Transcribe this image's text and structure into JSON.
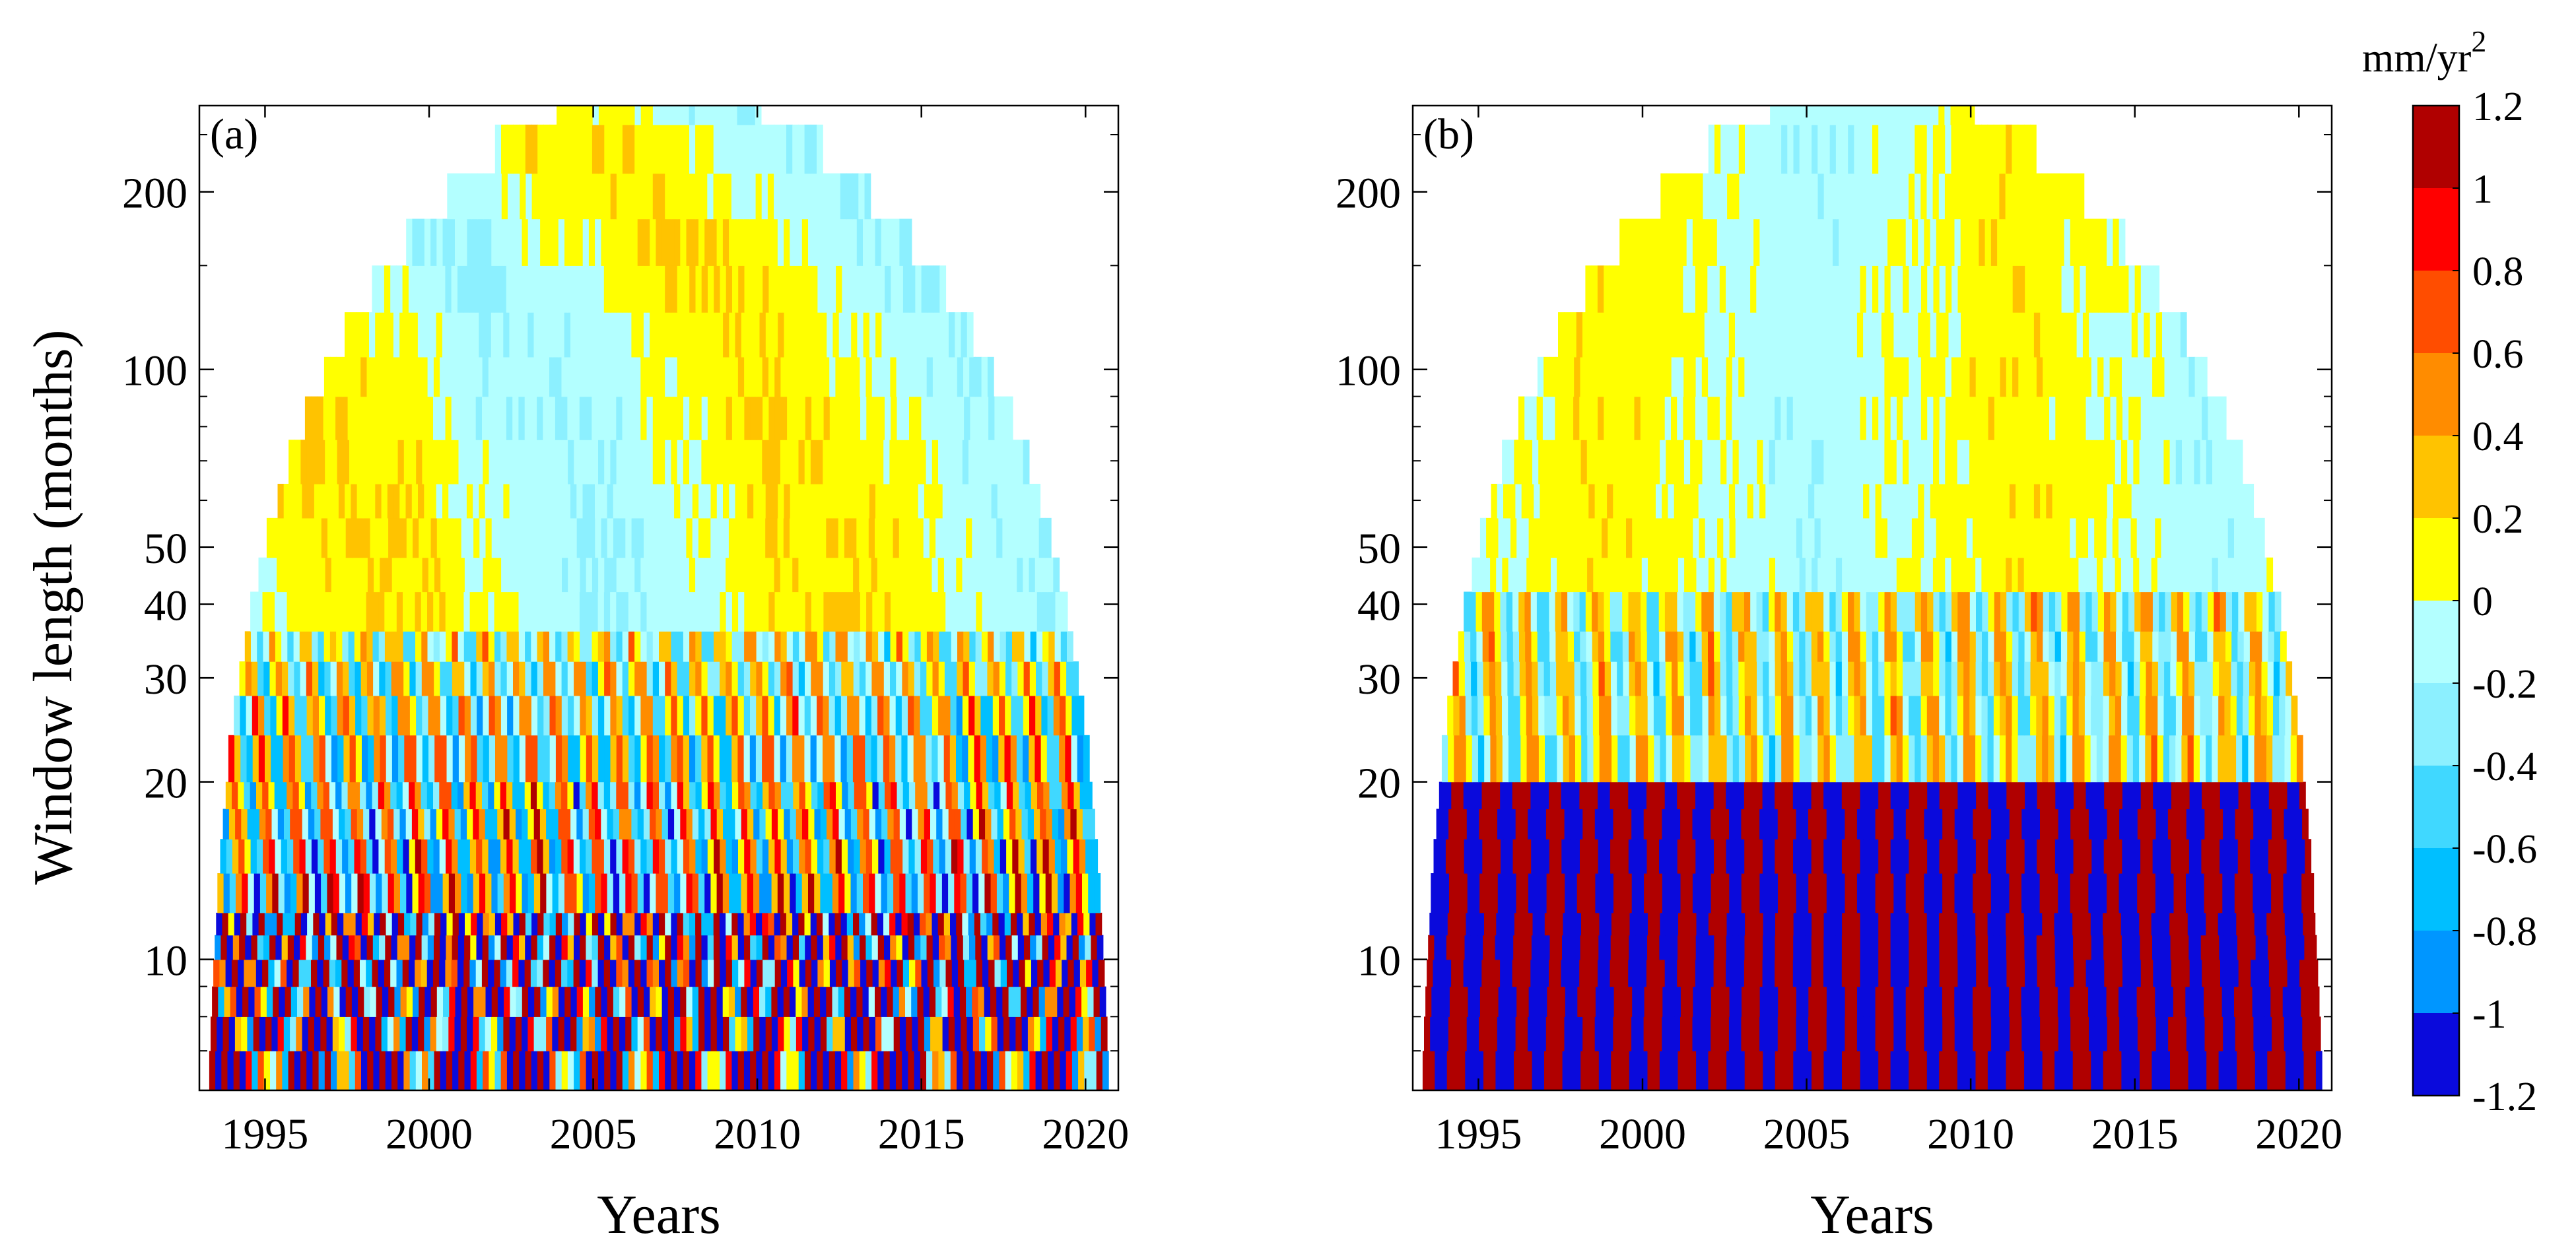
{
  "chart_data": [
    {
      "type": "heatmap",
      "panel_label": "(a)",
      "title": "",
      "xlabel": "Years",
      "ylabel": "Window length (months)",
      "x_range": [
        1993,
        2021
      ],
      "y_range": [
        6,
        280
      ],
      "y_scale": "log",
      "x_ticks": [
        1995,
        2000,
        2005,
        2010,
        2015,
        2020
      ],
      "x_tick_labels": [
        "1995",
        "2000",
        "2005",
        "2010",
        "2015",
        "2020"
      ],
      "y_ticks": [
        10,
        20,
        30,
        40,
        50,
        100,
        200
      ],
      "y_tick_labels": [
        "10",
        "20",
        "30",
        "40",
        "50",
        "100",
        "200"
      ],
      "window_lengths": [
        6,
        7,
        8,
        9,
        10,
        11,
        12,
        14,
        16,
        18,
        20,
        24,
        28,
        32,
        36,
        42,
        48,
        56,
        64,
        76,
        90,
        105,
        125,
        150,
        180,
        215,
        260
      ],
      "pattern": "dense"
    },
    {
      "type": "heatmap",
      "panel_label": "(b)",
      "title": "",
      "xlabel": "Years",
      "ylabel": "",
      "x_range": [
        1993,
        2021
      ],
      "y_range": [
        6,
        280
      ],
      "y_scale": "log",
      "x_ticks": [
        1995,
        2000,
        2005,
        2010,
        2015,
        2020
      ],
      "x_tick_labels": [
        "1995",
        "2000",
        "2005",
        "2010",
        "2015",
        "2020"
      ],
      "y_ticks": [
        10,
        20,
        30,
        40,
        50,
        100,
        200
      ],
      "y_tick_labels": [
        "10",
        "20",
        "30",
        "40",
        "50",
        "100",
        "200"
      ],
      "window_lengths": [
        6,
        7,
        8,
        9,
        10,
        11,
        12,
        14,
        16,
        18,
        20,
        24,
        28,
        32,
        36,
        42,
        48,
        56,
        64,
        76,
        90,
        105,
        125,
        150,
        180,
        215,
        260
      ],
      "pattern": "banded"
    }
  ],
  "colorbar": {
    "unit_base": "mm/yr",
    "unit_exp": "2",
    "tick_labels": [
      "1.2",
      "1",
      "0.8",
      "0.6",
      "0.4",
      "0.2",
      "0",
      "-0.2",
      "-0.4",
      "-0.6",
      "-0.8",
      "-1",
      "-1.2"
    ],
    "levels": [
      {
        "min": 1.0,
        "max": 1.2,
        "color": "#B00000"
      },
      {
        "min": 0.8,
        "max": 1.0,
        "color": "#FF0000"
      },
      {
        "min": 0.6,
        "max": 0.8,
        "color": "#FF4D00"
      },
      {
        "min": 0.4,
        "max": 0.6,
        "color": "#FF8C00"
      },
      {
        "min": 0.2,
        "max": 0.4,
        "color": "#FFC300"
      },
      {
        "min": 0.0,
        "max": 0.2,
        "color": "#FFFF00"
      },
      {
        "min": -0.2,
        "max": 0.0,
        "color": "#B3FFFF"
      },
      {
        "min": -0.4,
        "max": -0.2,
        "color": "#8CF0FF"
      },
      {
        "min": -0.6,
        "max": -0.4,
        "color": "#40D8FF"
      },
      {
        "min": -0.8,
        "max": -0.6,
        "color": "#00BFFF"
      },
      {
        "min": -1.0,
        "max": -0.8,
        "color": "#0096FF"
      },
      {
        "min": -1.2,
        "max": -1.0,
        "color": "#0A0ADC"
      }
    ]
  }
}
